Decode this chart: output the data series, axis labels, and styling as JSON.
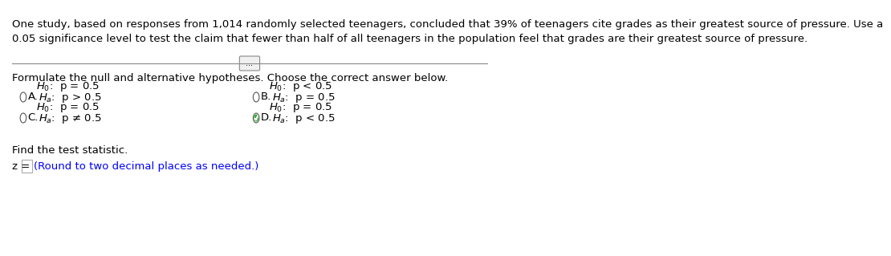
{
  "bg_color": "#ffffff",
  "header_text": "One study, based on responses from 1,014 randomly selected teenagers, concluded that 39% of teenagers cite grades as their greatest source of pressure. Use a\n0.05 significance level to test the claim that fewer than half of all teenagers in the population feel that grades are their greatest source of pressure.",
  "divider_label": "...",
  "formulate_text": "Formulate the null and alternative hypotheses. Choose the correct answer below.",
  "options": {
    "A": {
      "h0": "H₀: p = 0.5",
      "ha": "Hₐ: p > 0.5",
      "selected": false,
      "col": 0
    },
    "B": {
      "h0": "H₀: p < 0.5",
      "ha": "Hₐ: p = 0.5",
      "selected": false,
      "col": 1
    },
    "C": {
      "h0": "H₀: p = 0.5",
      "ha": "Hₐ: p ≠ 0.5",
      "selected": false,
      "col": 0
    },
    "D": {
      "h0": "H₀: p = 0.5",
      "ha": "Hₐ: p < 0.5",
      "selected": true,
      "col": 1
    }
  },
  "find_stat_text": "Find the test statistic.",
  "z_label": "z = ",
  "z_hint": "(Round to two decimal places as needed.)",
  "z_hint_color": "#0000ff",
  "text_color": "#000000",
  "font_size": 9.5
}
